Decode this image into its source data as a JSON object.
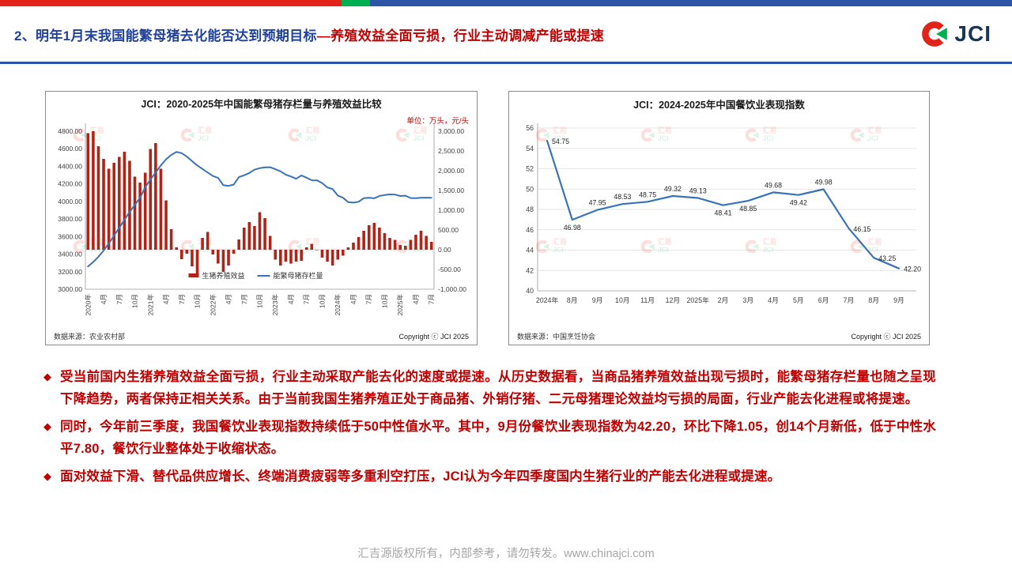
{
  "colors": {
    "brand_red": "#e2231a",
    "brand_green": "#00b050",
    "brand_blue": "#2e55a5",
    "title_blue": "#1f419b",
    "text_red": "#c00000",
    "bar_red": "#b02418",
    "line_blue": "#3a72b8",
    "logo_navy": "#16365c",
    "footer_gray": "#a6a6a6"
  },
  "header": {
    "title_main": "2、明年1月末我国能繁母猪去化能否达到预期目标",
    "title_sub": "—养殖效益全面亏损，行业主动调减产能或提速",
    "logo_text": "JCI"
  },
  "watermark": {
    "top": "汇易",
    "bottom": "JCI"
  },
  "chart_data": [
    {
      "type": "combo-bar-line",
      "title": "JCI：2020-2025年中国能繁母猪存栏量与养殖效益比较",
      "unit_label": "单位：万头，元/头",
      "x_tick_labels": [
        "2020年",
        "4月",
        "7月",
        "10月",
        "2021年",
        "4月",
        "7月",
        "10月",
        "2022年",
        "4月",
        "7月",
        "10月",
        "2023年",
        "4月",
        "7月",
        "10月",
        "2024年",
        "4月",
        "7月",
        "10月",
        "2025年",
        "4月",
        "7月"
      ],
      "left_axis": {
        "min": 3000,
        "max": 4800,
        "ticks": [
          "4800.00",
          "4600.00",
          "4400.00",
          "4200.00",
          "4000.00",
          "3800.00",
          "3600.00",
          "3400.00",
          "3200.00",
          "3000.00"
        ]
      },
      "right_axis": {
        "min": -1000,
        "max": 3000,
        "ticks": [
          "3,000.00",
          "2,500.00",
          "2,000.00",
          "1,500.00",
          "1,000.00",
          "500.00",
          "0.00",
          "-500.00",
          "-1,000.00"
        ]
      },
      "series": [
        {
          "name": "生猪养殖效益",
          "type": "bar",
          "axis": "right",
          "color": "#b02418",
          "values": [
            2950,
            3000,
            2620,
            2300,
            2050,
            2200,
            2350,
            2480,
            2250,
            1850,
            1700,
            1950,
            2550,
            2700,
            2050,
            1250,
            520,
            60,
            -240,
            -100,
            -420,
            -660,
            300,
            450,
            -120,
            -350,
            -560,
            -400,
            -100,
            260,
            560,
            700,
            600,
            950,
            800,
            350,
            -250,
            -400,
            -300,
            -350,
            -300,
            -280,
            60,
            150,
            0,
            -200,
            -300,
            -400,
            -250,
            -150,
            60,
            180,
            320,
            480,
            620,
            680,
            560,
            420,
            300,
            250,
            120,
            100,
            250,
            380,
            480,
            350,
            200
          ]
        },
        {
          "name": "能繁母猪存栏量",
          "type": "line",
          "axis": "left",
          "color": "#3a72b8",
          "values": [
            3260,
            3310,
            3370,
            3440,
            3520,
            3610,
            3700,
            3790,
            3880,
            3960,
            4040,
            4161,
            4250,
            4330,
            4410,
            4480,
            4530,
            4564,
            4550,
            4510,
            4459,
            4410,
            4370,
            4329,
            4290,
            4268,
            4185,
            4177,
            4192,
            4277,
            4298,
            4324,
            4362,
            4379,
            4388,
            4390,
            4367,
            4343,
            4305,
            4284,
            4258,
            4296,
            4271,
            4241,
            4240,
            4210,
            4158,
            4142,
            4067,
            4042,
            3992,
            3986,
            3996,
            4038,
            4041,
            4036,
            4062,
            4073,
            4080,
            4078,
            4062,
            4066,
            4039,
            4038,
            4042,
            4043,
            4042
          ]
        }
      ],
      "source": "数据来源：农业农村部",
      "copyright": "Copyright ⓒ JCI 2025"
    },
    {
      "type": "line",
      "title": "JCI：2024-2025年中国餐饮业表现指数",
      "categories": [
        "2024年",
        "8月",
        "9月",
        "10月",
        "11月",
        "12月",
        "2025年",
        "2月",
        "3月",
        "4月",
        "5月",
        "6月",
        "7月",
        "8月",
        "9月"
      ],
      "values": [
        54.75,
        46.98,
        47.95,
        48.53,
        48.75,
        49.32,
        49.13,
        48.41,
        48.85,
        49.68,
        49.42,
        49.98,
        46.15,
        43.25,
        42.2
      ],
      "label_pos": [
        "right",
        "below",
        "above",
        "above",
        "above",
        "above",
        "above",
        "below",
        "below",
        "above",
        "below",
        "above",
        "right",
        "right",
        "right"
      ],
      "ylim": [
        40,
        56
      ],
      "yticks": [
        "56",
        "54",
        "52",
        "50",
        "48",
        "46",
        "44",
        "42",
        "40"
      ],
      "line_color": "#3a72b8",
      "grid": true,
      "source": "数据来源：中国烹饪协会",
      "copyright": "Copyright ⓒ JCI 2025"
    }
  ],
  "bullets": [
    "受当前国内生猪养殖效益全面亏损，行业主动采取产能去化的速度或提速。从历史数据看，当商品猪养殖效益出现亏损时，能繁母猪存栏量也随之呈现下降趋势，两者保持正相关关系。由于当前我国生猪养殖正处于商品猪、外销仔猪、二元母猪理论效益均亏损的局面，行业产能去化进程或将提速。",
    "同时，今年前三季度，我国餐饮业表现指数持续低于50中性值水平。其中，9月份餐饮业表现指数为42.20，环比下降1.05，创14个月新低，低于中性水平7.80，餐饮行业整体处于收缩状态。",
    "面对效益下滑、替代品供应增长、终端消费疲弱等多重利空打压，JCI认为今年四季度国内生猪行业的产能去化进程或提速。"
  ],
  "footer": {
    "text": "汇吉源版权所有，内部参考，请勿转发。www.chinajci.com"
  }
}
